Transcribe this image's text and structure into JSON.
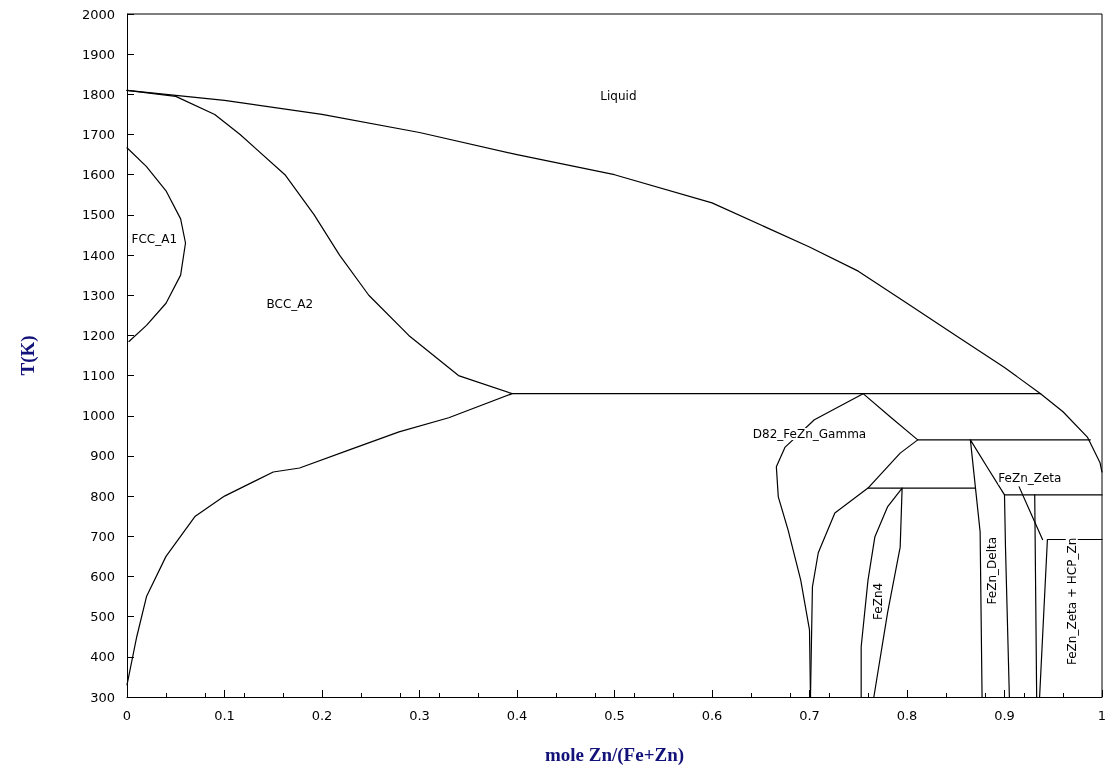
{
  "chart_data": {
    "type": "line",
    "xlabel": "mole Zn/(Fe+Zn)",
    "ylabel": "T(K)",
    "xlim": [
      0,
      1
    ],
    "xticks": [
      0,
      0.1,
      0.2,
      0.3,
      0.4,
      0.5,
      0.6,
      0.7,
      0.8,
      0.9,
      1
    ],
    "ylim": [
      300,
      2000
    ],
    "yticks": [
      300,
      400,
      500,
      600,
      700,
      800,
      900,
      1000,
      1100,
      1200,
      1300,
      1400,
      1500,
      1600,
      1700,
      1800,
      1900,
      2000
    ],
    "grid": false,
    "marker": "none",
    "line_style": "solid",
    "series": [
      {
        "color": "#000000",
        "x": [
          0,
          0.1,
          0.2,
          0.3,
          0.4,
          0.5,
          0.6,
          0.7,
          0.75,
          0.8,
          0.85,
          0.9,
          0.937,
          0.96,
          0.985,
          0.998,
          1
        ],
        "values": [
          1810,
          1785,
          1750,
          1705,
          1650,
          1600,
          1530,
          1420,
          1360,
          1280,
          1200,
          1120,
          1055,
          1010,
          947,
          883,
          860
        ]
      },
      {
        "color": "#000000",
        "x": [
          0,
          0.05,
          0.09,
          0.116,
          0.162,
          0.192,
          0.218,
          0.248,
          0.289,
          0.34,
          0.395
        ],
        "values": [
          1810,
          1795,
          1750,
          1700,
          1600,
          1500,
          1400,
          1300,
          1200,
          1100,
          1055
        ]
      },
      {
        "color": "#000000",
        "x": [
          0,
          0.01,
          0.02,
          0.04,
          0.07,
          0.1,
          0.15,
          0.177,
          0.228,
          0.279,
          0.33,
          0.395,
          0.937
        ],
        "values": [
          330,
          450,
          550,
          650,
          750,
          800,
          860,
          870,
          915,
          960,
          995,
          1055,
          1055
        ]
      },
      {
        "color": "#000000",
        "x": [
          0,
          0.02,
          0.04,
          0.055,
          0.06,
          0.055,
          0.04,
          0.02,
          0.002
        ],
        "values": [
          1667,
          1620,
          1560,
          1490,
          1430,
          1350,
          1280,
          1225,
          1185
        ]
      },
      {
        "color": "#000000",
        "x": [
          0.701,
          0.7,
          0.691,
          0.678,
          0.668,
          0.666,
          0.675,
          0.705,
          0.755,
          0.783,
          0.811,
          0.988
        ],
        "values": [
          300,
          467,
          591,
          716,
          798,
          873,
          922,
          990,
          1055,
          997,
          940,
          940
        ]
      },
      {
        "color": "#000000",
        "x": [
          0.811,
          0.793,
          0.76,
          0.726,
          0.709,
          0.703,
          0.701
        ],
        "values": [
          940,
          907,
          820,
          758,
          659,
          574,
          300
        ]
      },
      {
        "color": "#000000",
        "x": [
          0.76,
          0.87
        ],
        "values": [
          820,
          820
        ]
      },
      {
        "color": "#000000",
        "x": [
          0.753,
          0.753,
          0.76,
          0.767,
          0.78,
          0.795,
          0.793,
          0.78,
          0.766
        ],
        "values": [
          300,
          425,
          591,
          698,
          773,
          820,
          673,
          509,
          300
        ]
      },
      {
        "color": "#000000",
        "x": [
          0.877,
          0.875,
          0.865,
          0.882,
          0.9,
          0.901,
          0.905
        ],
        "values": [
          300,
          711,
          940,
          873,
          803,
          674,
          300
        ]
      },
      {
        "color": "#000000",
        "x": [
          0.9,
          1
        ],
        "values": [
          803,
          803
        ]
      },
      {
        "color": "#000000",
        "x": [
          0.931,
          0.933
        ],
        "values": [
          803,
          300
        ]
      },
      {
        "color": "#000000",
        "x": [
          0.915,
          0.939
        ],
        "values": [
          823,
          692
        ]
      },
      {
        "color": "#000000",
        "x": [
          0.936,
          0.944,
          1
        ],
        "values": [
          300,
          692,
          692
        ]
      }
    ],
    "annotations": [
      "Liquid",
      "BCC_A2",
      "FCC_A1",
      "D82_FeZn_Gamma",
      "FeZn4",
      "FeZn_Delta",
      "FeZn_Zeta + HCP_Zn",
      "FeZn_Zeta"
    ]
  }
}
